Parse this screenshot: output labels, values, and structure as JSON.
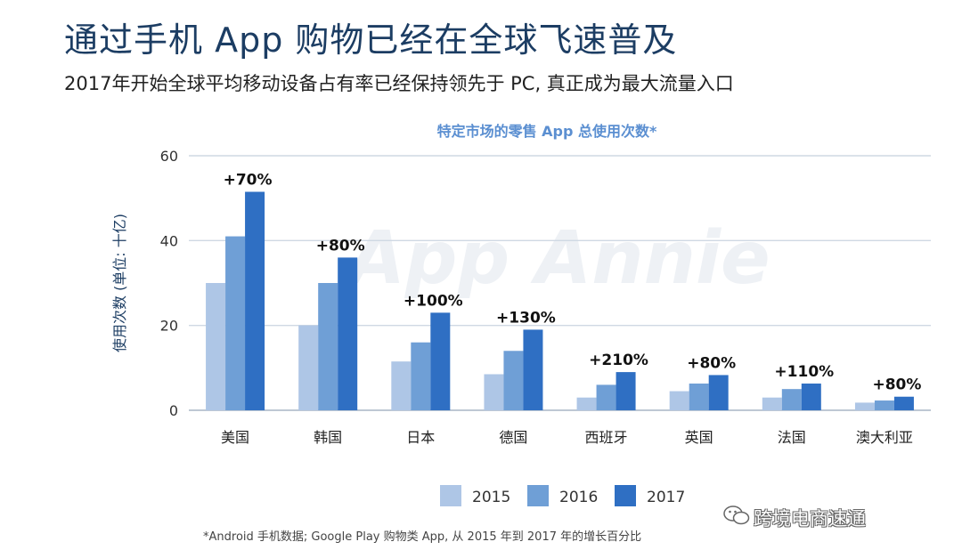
{
  "headline": "通过手机 App 购物已经在全球飞速普及",
  "subheadline": "2017年开始全球平均移动设备占有率已经保持领先于 PC, 真正成为最大流量入口",
  "watermark_text": "跨境电商速通",
  "chart_data": {
    "type": "bar",
    "title": "特定市场的零售 App 总使用次数*",
    "ylabel": "使用次数 (单位: 十亿)",
    "xlabel": "",
    "ylim": [
      0,
      60
    ],
    "yticks": [
      0,
      20,
      40,
      60
    ],
    "grid": true,
    "legend_position": "bottom",
    "categories": [
      "美国",
      "韩国",
      "日本",
      "德国",
      "西班牙",
      "英国",
      "法国",
      "澳大利亚"
    ],
    "series": [
      {
        "name": "2015",
        "color": "#aec6e6",
        "values": [
          30,
          20,
          11.5,
          8.5,
          3,
          4.5,
          3,
          1.8
        ]
      },
      {
        "name": "2016",
        "color": "#6f9fd6",
        "values": [
          41,
          30,
          16,
          14,
          6,
          6.3,
          5,
          2.3
        ]
      },
      {
        "name": "2017",
        "color": "#2f6fc3",
        "values": [
          51.5,
          36,
          23,
          19,
          9,
          8.3,
          6.3,
          3.2
        ]
      }
    ],
    "annotations": [
      "+70%",
      "+80%",
      "+100%",
      "+130%",
      "+210%",
      "+80%",
      "+110%",
      "+80%"
    ],
    "footnote": "*Android 手机数据; Google Play 购物类 App, 从 2015 年到 2017 年的增长百分比",
    "watermark": "App Annie",
    "title_color": "#5b8fd1",
    "axis_text_color": "#333333",
    "ylabel_color": "#1c3d63",
    "grid_color": "#cfd8e3"
  }
}
